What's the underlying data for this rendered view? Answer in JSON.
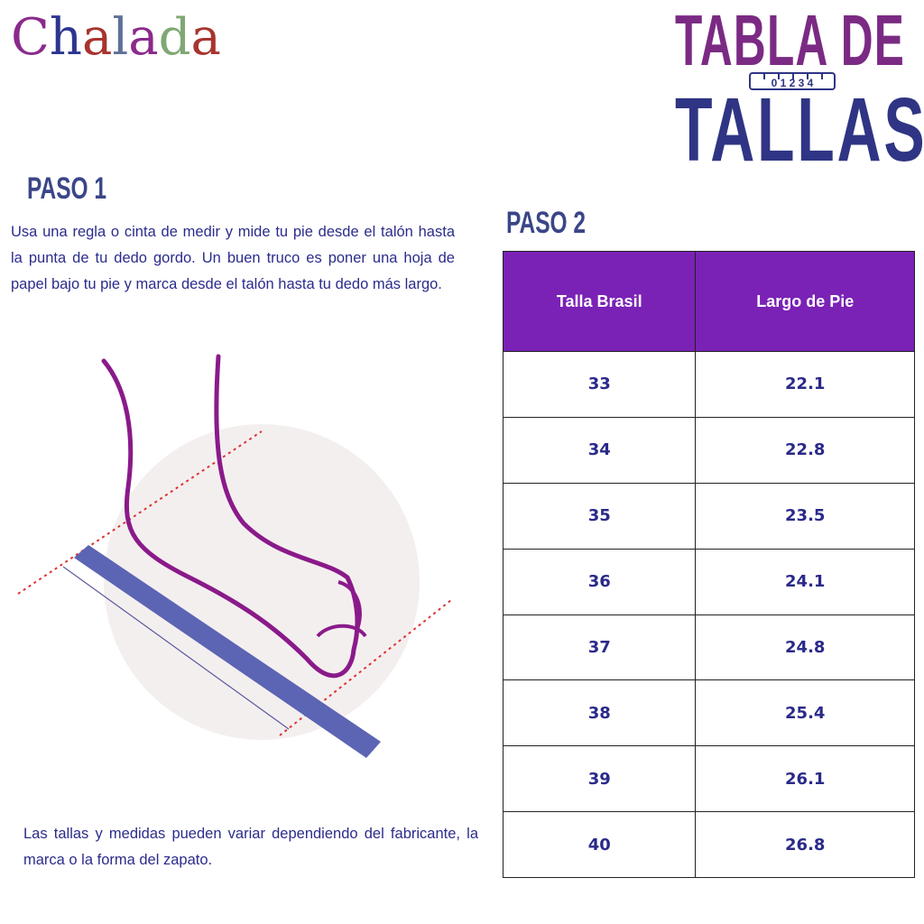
{
  "brand": {
    "logo_text": "Chalada",
    "logo_colors": [
      "#8b2a8c",
      "#2e3590",
      "#a8342e",
      "#5f7199",
      "#8b2a8c",
      "#7fa874",
      "#a8342e"
    ]
  },
  "title": {
    "line1": "TABLA DE",
    "line2": "TALLAS",
    "ruler_numbers": "0 1 2 3 4"
  },
  "step1": {
    "heading": "PASO 1",
    "text": "Usa una regla o cinta de medir y mide tu pie desde el talón hasta la punta de tu dedo gordo. Un buen truco es poner una hoja de papel bajo tu pie y marca desde el talón hasta tu dedo más largo."
  },
  "step2": {
    "heading": "PASO 2"
  },
  "table": {
    "headers": [
      "Talla Brasil",
      "Largo de Pie"
    ],
    "rows": [
      [
        "33",
        "22.1"
      ],
      [
        "34",
        "22.8"
      ],
      [
        "35",
        "23.5"
      ],
      [
        "36",
        "24.1"
      ],
      [
        "37",
        "24.8"
      ],
      [
        "38",
        "25.4"
      ],
      [
        "39",
        "26.1"
      ],
      [
        "40",
        "26.8"
      ]
    ]
  },
  "note": "Las tallas y medidas pueden variar dependiendo del fabricante, la marca o la forma del zapato.",
  "colors": {
    "header_bg": "#7a22b6",
    "text": "#2a2a8a",
    "title_purple": "#7b2a84",
    "title_navy": "#2f3584"
  }
}
